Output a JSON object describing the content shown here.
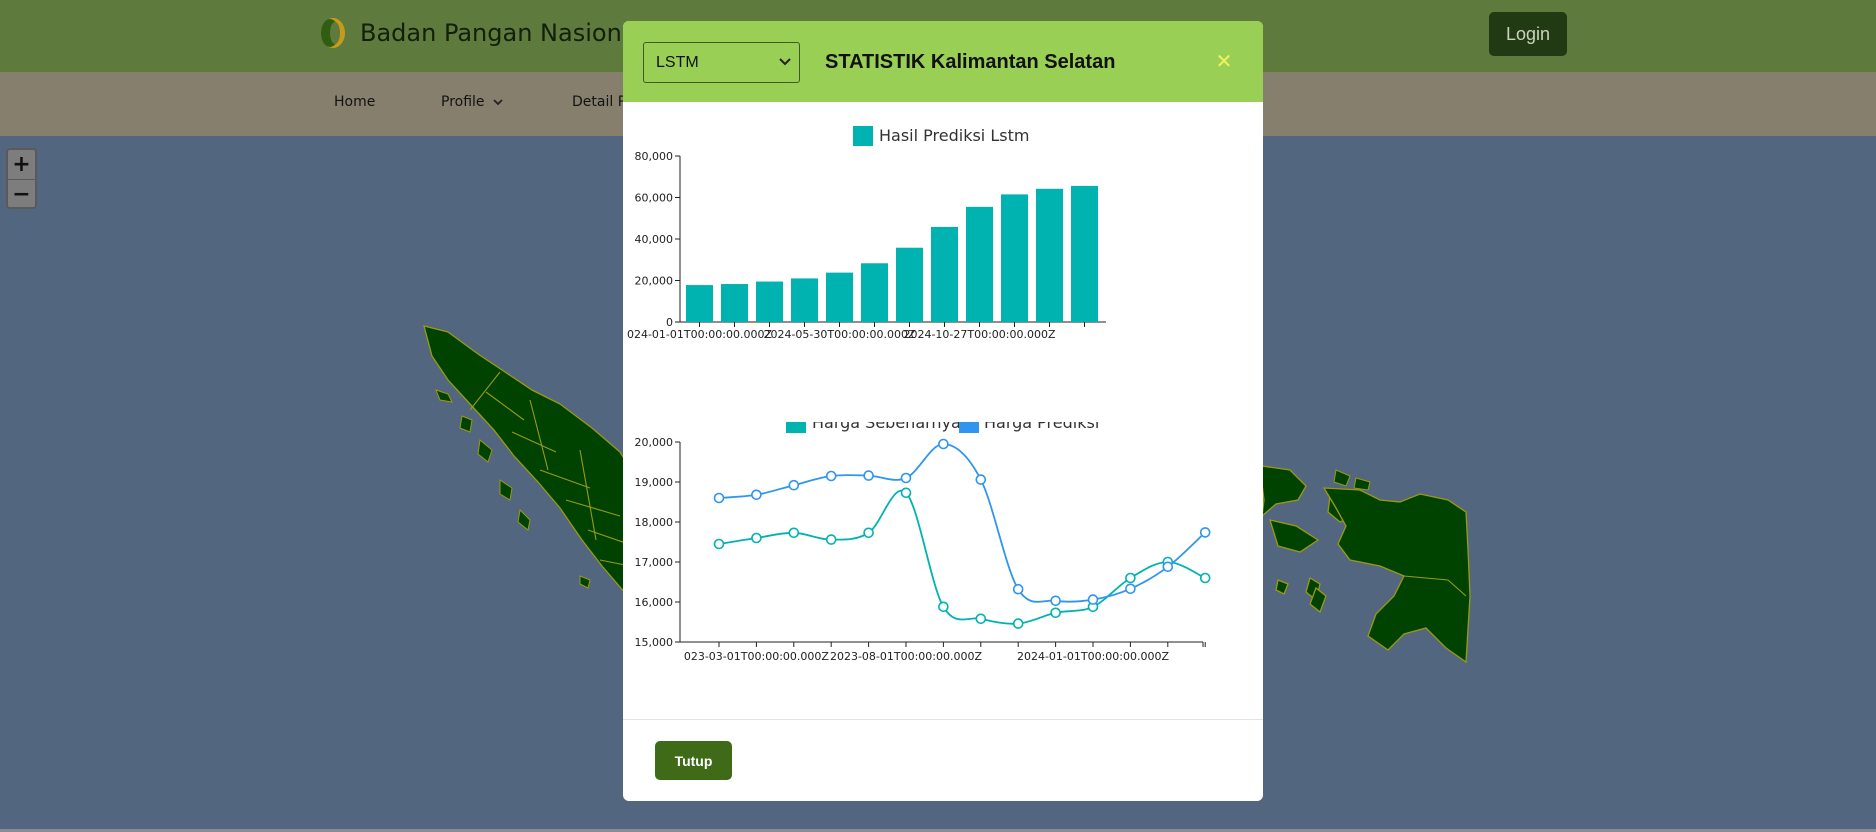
{
  "header": {
    "brand_title": "Badan Pangan Nasional",
    "login_label": "Login"
  },
  "nav": {
    "items": [
      {
        "label": "Home"
      },
      {
        "label": "Profile"
      },
      {
        "label": "Detail P"
      }
    ]
  },
  "map": {
    "zoom_in_label": "+",
    "zoom_out_label": "−",
    "land_color": "#004200",
    "border_color": "#9a9a10"
  },
  "modal": {
    "model_select": {
      "selected": "LSTM"
    },
    "title": "STATISTIK Kalimantan Selatan",
    "close_symbol": "✕",
    "footer_button_label": "Tutup"
  },
  "colors": {
    "header_bg": "#9acf55",
    "topbar_bg": "#5e7a3d",
    "navbar_bg": "#867f6e",
    "series_teal": "#00b3b1",
    "series_blue": "#2f95ee",
    "footer_button": "#3f6b18"
  },
  "chart_data": [
    {
      "type": "bar",
      "legend_position": "top",
      "series": [
        {
          "name": "Hasil Prediksi Lstm",
          "color": "#00b3b1",
          "values": [
            17800,
            18300,
            19500,
            21000,
            23800,
            28300,
            35800,
            45800,
            55500,
            61500,
            64200,
            65600
          ]
        }
      ],
      "xtick_labels": [
        "024-01-01T00:00:00.000Z",
        "2024-05-30T00:00:00.000Z",
        "2024-10-27T00:00:00.000Z"
      ],
      "ytick_labels": [
        "0",
        "20,000",
        "40,000",
        "60,000",
        "80,000"
      ],
      "ylim": [
        0,
        80000
      ]
    },
    {
      "type": "line",
      "legend_position": "top",
      "series": [
        {
          "name": "Harga Sebenarnya",
          "color": "#00b3b1",
          "values": [
            17450,
            17600,
            17730,
            17560,
            17730,
            18730,
            15880,
            15580,
            15460,
            15730,
            15880,
            16600,
            17000,
            16600
          ]
        },
        {
          "name": "Harga Prediksi",
          "color": "#2f95ee",
          "values": [
            18600,
            18680,
            18920,
            19150,
            19160,
            19100,
            19950,
            19060,
            16320,
            16030,
            16060,
            16330,
            16880,
            17740
          ]
        }
      ],
      "xtick_labels": [
        "023-03-01T00:00:00.000Z",
        "2023-08-01T00:00:00.000Z",
        "2024-01-01T00:00:00.000Z"
      ],
      "ytick_labels": [
        "15,000",
        "16,000",
        "17,000",
        "18,000",
        "19,000",
        "20,000"
      ],
      "ylim": [
        15000,
        20000
      ]
    }
  ]
}
